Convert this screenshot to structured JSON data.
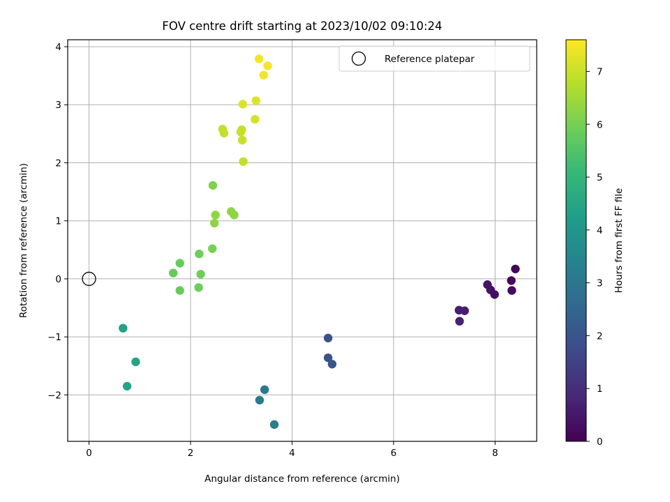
{
  "chart_data": {
    "type": "scatter",
    "title": "FOV centre drift starting at 2023/10/02 09:10:24",
    "xlabel": "Angular distance from reference (arcmin)",
    "ylabel": "Rotation from reference (arcmin)",
    "xlim": [
      -0.42,
      8.82
    ],
    "ylim": [
      -2.8,
      4.12
    ],
    "xticks": [
      0,
      2,
      4,
      6,
      8
    ],
    "xtick_labels": [
      "0",
      "2",
      "4",
      "6",
      "8"
    ],
    "yticks": [
      -2,
      -1,
      0,
      1,
      2,
      3,
      4
    ],
    "ytick_labels": [
      "−2",
      "−1",
      "0",
      "1",
      "2",
      "3",
      "4"
    ],
    "grid": true,
    "legend": {
      "placement": "top-right",
      "entries": [
        "Reference platepar"
      ]
    },
    "reference_point": {
      "x": 0,
      "y": 0,
      "marker": "open-circle"
    },
    "colorbar": {
      "label": "Hours from first FF file",
      "colormap": "viridis",
      "range": [
        0,
        7.6
      ],
      "ticks": [
        0,
        1,
        2,
        3,
        4,
        5,
        6,
        7
      ],
      "tick_labels": [
        "0",
        "1",
        "2",
        "3",
        "4",
        "5",
        "6",
        "7"
      ]
    },
    "points": [
      {
        "x": 8.4,
        "y": 0.17,
        "hours": 0.1
      },
      {
        "x": 8.32,
        "y": -0.03,
        "hours": 0.15
      },
      {
        "x": 8.33,
        "y": -0.2,
        "hours": 0.2
      },
      {
        "x": 7.99,
        "y": -0.27,
        "hours": 0.3
      },
      {
        "x": 7.91,
        "y": -0.19,
        "hours": 0.35
      },
      {
        "x": 7.85,
        "y": -0.1,
        "hours": 0.4
      },
      {
        "x": 7.4,
        "y": -0.55,
        "hours": 0.6
      },
      {
        "x": 7.29,
        "y": -0.54,
        "hours": 0.65
      },
      {
        "x": 7.3,
        "y": -0.73,
        "hours": 0.7
      },
      {
        "x": 4.71,
        "y": -1.02,
        "hours": 1.9
      },
      {
        "x": 4.71,
        "y": -1.36,
        "hours": 1.95
      },
      {
        "x": 4.79,
        "y": -1.47,
        "hours": 2.0
      },
      {
        "x": 3.46,
        "y": -1.91,
        "hours": 3.1
      },
      {
        "x": 3.36,
        "y": -2.09,
        "hours": 3.15
      },
      {
        "x": 3.65,
        "y": -2.51,
        "hours": 3.2
      },
      {
        "x": 0.67,
        "y": -0.85,
        "hours": 4.35
      },
      {
        "x": 0.92,
        "y": -1.43,
        "hours": 4.4
      },
      {
        "x": 0.75,
        "y": -1.85,
        "hours": 4.45
      },
      {
        "x": 1.66,
        "y": 0.1,
        "hours": 5.8
      },
      {
        "x": 1.79,
        "y": 0.27,
        "hours": 5.8
      },
      {
        "x": 1.79,
        "y": -0.2,
        "hours": 5.8
      },
      {
        "x": 2.17,
        "y": 0.43,
        "hours": 5.9
      },
      {
        "x": 2.2,
        "y": 0.08,
        "hours": 5.9
      },
      {
        "x": 2.16,
        "y": -0.15,
        "hours": 5.9
      },
      {
        "x": 2.43,
        "y": 0.52,
        "hours": 6.0
      },
      {
        "x": 2.44,
        "y": 1.61,
        "hours": 6.1
      },
      {
        "x": 2.49,
        "y": 1.1,
        "hours": 6.3
      },
      {
        "x": 2.47,
        "y": 0.96,
        "hours": 6.3
      },
      {
        "x": 2.8,
        "y": 1.16,
        "hours": 6.3
      },
      {
        "x": 2.86,
        "y": 1.1,
        "hours": 6.3
      },
      {
        "x": 2.63,
        "y": 2.58,
        "hours": 6.9
      },
      {
        "x": 2.66,
        "y": 2.51,
        "hours": 6.9
      },
      {
        "x": 3.01,
        "y": 2.57,
        "hours": 6.95
      },
      {
        "x": 2.99,
        "y": 2.53,
        "hours": 6.95
      },
      {
        "x": 3.04,
        "y": 2.02,
        "hours": 6.9
      },
      {
        "x": 3.02,
        "y": 2.39,
        "hours": 6.95
      },
      {
        "x": 3.03,
        "y": 3.01,
        "hours": 7.2
      },
      {
        "x": 3.29,
        "y": 3.07,
        "hours": 7.2
      },
      {
        "x": 3.27,
        "y": 2.75,
        "hours": 7.1
      },
      {
        "x": 3.44,
        "y": 3.51,
        "hours": 7.45
      },
      {
        "x": 3.35,
        "y": 3.79,
        "hours": 7.5
      },
      {
        "x": 3.52,
        "y": 3.67,
        "hours": 7.5
      }
    ]
  }
}
